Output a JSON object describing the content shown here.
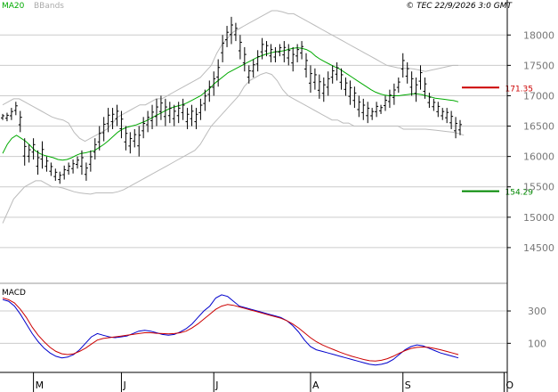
{
  "header": {
    "ma_label": "MA20",
    "bb_label": "BBands",
    "source_date": "© TEC 22/9/2026 3:0 GMT",
    "macd_label": "MACD"
  },
  "colors": {
    "price": "#000000",
    "ma20": "#00aa00",
    "bbands": "#bbbbbb",
    "resistance": "#cc0000",
    "support": "#008800",
    "macd": "#0000cc",
    "signal": "#cc0000",
    "grid": "#cccccc"
  },
  "chart_data": [
    {
      "type": "ohlc",
      "name": "price",
      "ylim": [
        14000,
        18400
      ],
      "y_ticks": [
        14500,
        15000,
        15500,
        16000,
        16500,
        17000,
        17500,
        18000
      ],
      "y_tick_labels": [
        "14500",
        "15000",
        "15500",
        "16000",
        "16500",
        "17000",
        "17500",
        "18000"
      ],
      "x_month_labels": [
        "M",
        "J",
        "J",
        "A",
        "S",
        "O"
      ],
      "bars": [
        [
          16700,
          16600
        ],
        [
          16720,
          16580
        ],
        [
          16800,
          16600
        ],
        [
          16900,
          16680
        ],
        [
          16750,
          16400
        ],
        [
          16300,
          15850
        ],
        [
          16200,
          15900
        ],
        [
          16300,
          15950
        ],
        [
          16100,
          15700
        ],
        [
          16250,
          15800
        ],
        [
          16000,
          15750
        ],
        [
          15900,
          15680
        ],
        [
          15800,
          15600
        ],
        [
          15750,
          15550
        ],
        [
          15850,
          15620
        ],
        [
          15900,
          15700
        ],
        [
          15950,
          15720
        ],
        [
          16000,
          15800
        ],
        [
          16100,
          15700
        ],
        [
          15900,
          15600
        ],
        [
          16100,
          15750
        ],
        [
          16300,
          15950
        ],
        [
          16500,
          16100
        ],
        [
          16650,
          16250
        ],
        [
          16800,
          16400
        ],
        [
          16800,
          16450
        ],
        [
          16850,
          16500
        ],
        [
          16750,
          16300
        ],
        [
          16500,
          16100
        ],
        [
          16400,
          16050
        ],
        [
          16450,
          16150
        ],
        [
          16500,
          16000
        ],
        [
          16650,
          16300
        ],
        [
          16750,
          16400
        ],
        [
          16850,
          16450
        ],
        [
          16950,
          16500
        ],
        [
          17000,
          16600
        ],
        [
          16950,
          16500
        ],
        [
          16900,
          16550
        ],
        [
          16850,
          16500
        ],
        [
          16900,
          16550
        ],
        [
          16950,
          16600
        ],
        [
          16800,
          16450
        ],
        [
          16850,
          16500
        ],
        [
          16800,
          16450
        ],
        [
          16950,
          16600
        ],
        [
          17100,
          16750
        ],
        [
          17250,
          16900
        ],
        [
          17400,
          17000
        ],
        [
          17600,
          17150
        ],
        [
          18000,
          17550
        ],
        [
          18150,
          17800
        ],
        [
          18300,
          17850
        ],
        [
          18200,
          17900
        ],
        [
          18000,
          17600
        ],
        [
          17800,
          17400
        ],
        [
          17500,
          17200
        ],
        [
          17600,
          17300
        ],
        [
          17750,
          17400
        ],
        [
          17950,
          17600
        ],
        [
          17900,
          17650
        ],
        [
          17850,
          17550
        ],
        [
          17800,
          17550
        ],
        [
          17850,
          17650
        ],
        [
          17900,
          17550
        ],
        [
          17850,
          17500
        ],
        [
          17800,
          17400
        ],
        [
          17850,
          17550
        ],
        [
          17900,
          17600
        ],
        [
          17700,
          17300
        ],
        [
          17500,
          17050
        ],
        [
          17450,
          17100
        ],
        [
          17350,
          16950
        ],
        [
          17300,
          16900
        ],
        [
          17400,
          17000
        ],
        [
          17500,
          17200
        ],
        [
          17550,
          17250
        ],
        [
          17450,
          17100
        ],
        [
          17300,
          17000
        ],
        [
          17250,
          16850
        ],
        [
          17150,
          16800
        ],
        [
          17000,
          16650
        ],
        [
          16950,
          16600
        ],
        [
          16900,
          16550
        ],
        [
          16800,
          16600
        ],
        [
          16900,
          16650
        ],
        [
          16850,
          16700
        ],
        [
          17000,
          16750
        ],
        [
          17100,
          16800
        ],
        [
          17200,
          16850
        ],
        [
          17300,
          17050
        ],
        [
          17700,
          17300
        ],
        [
          17550,
          17200
        ],
        [
          17400,
          17000
        ],
        [
          17300,
          16900
        ],
        [
          17500,
          17100
        ],
        [
          17300,
          16950
        ],
        [
          17050,
          16800
        ],
        [
          16950,
          16750
        ],
        [
          16900,
          16650
        ],
        [
          16800,
          16600
        ],
        [
          16800,
          16550
        ],
        [
          16750,
          16450
        ],
        [
          16650,
          16300
        ],
        [
          16600,
          16350
        ]
      ],
      "ma20": [
        16050,
        16200,
        16300,
        16350,
        16300,
        16250,
        16180,
        16100,
        16050,
        16020,
        16000,
        15980,
        15950,
        15940,
        15950,
        15980,
        16020,
        16050,
        16060,
        16080,
        16100,
        16150,
        16200,
        16260,
        16330,
        16400,
        16450,
        16480,
        16500,
        16520,
        16550,
        16580,
        16620,
        16660,
        16700,
        16740,
        16780,
        16810,
        16830,
        16850,
        16880,
        16920,
        16960,
        17000,
        17060,
        17120,
        17200,
        17260,
        17320,
        17380,
        17420,
        17460,
        17500,
        17540,
        17580,
        17620,
        17650,
        17680,
        17700,
        17720,
        17730,
        17740,
        17760,
        17780,
        17790,
        17780,
        17760,
        17720,
        17650,
        17600,
        17560,
        17520,
        17480,
        17450,
        17400,
        17350,
        17300,
        17250,
        17200,
        17150,
        17100,
        17060,
        17030,
        17010,
        17000,
        17000,
        17000,
        17010,
        17020,
        17030,
        17030,
        17020,
        17000,
        16980,
        16960,
        16950,
        16940,
        16930,
        16920,
        16900
      ],
      "bb_upper": [
        16850,
        16900,
        16950,
        16950,
        16900,
        16850,
        16800,
        16750,
        16700,
        16650,
        16620,
        16600,
        16550,
        16400,
        16300,
        16250,
        16300,
        16350,
        16400,
        16450,
        16550,
        16650,
        16700,
        16750,
        16800,
        16850,
        16850,
        16900,
        16950,
        16950,
        17000,
        17050,
        17100,
        17150,
        17200,
        17250,
        17300,
        17400,
        17500,
        17700,
        17850,
        17950,
        18050,
        18100,
        18150,
        18200,
        18250,
        18300,
        18350,
        18400,
        18400,
        18380,
        18350,
        18350,
        18300,
        18250,
        18200,
        18150,
        18100,
        18050,
        18000,
        17950,
        17900,
        17850,
        17800,
        17750,
        17700,
        17650,
        17600,
        17550,
        17500,
        17480,
        17460,
        17450,
        17450,
        17440,
        17420,
        17400,
        17420,
        17440,
        17460,
        17480,
        17500,
        17500
      ],
      "bb_lower": [
        14900,
        15100,
        15300,
        15400,
        15500,
        15550,
        15600,
        15600,
        15550,
        15500,
        15500,
        15480,
        15450,
        15420,
        15400,
        15390,
        15380,
        15400,
        15400,
        15400,
        15400,
        15420,
        15450,
        15500,
        15550,
        15600,
        15650,
        15700,
        15750,
        15800,
        15850,
        15900,
        15950,
        16000,
        16050,
        16100,
        16200,
        16350,
        16500,
        16600,
        16700,
        16800,
        16900,
        17000,
        17150,
        17250,
        17300,
        17350,
        17380,
        17350,
        17250,
        17100,
        17000,
        16950,
        16900,
        16850,
        16800,
        16750,
        16700,
        16650,
        16600,
        16600,
        16550,
        16550,
        16500,
        16500,
        16500,
        16500,
        16500,
        16500,
        16500,
        16500,
        16500,
        16450,
        16450,
        16450,
        16450,
        16450,
        16440,
        16430,
        16420,
        16410,
        16400,
        16380,
        16350
      ],
      "annotations": [
        {
          "label": "171.35",
          "value": 17135,
          "kind": "resistance"
        },
        {
          "label": "154.29",
          "value": 15429,
          "kind": "support"
        }
      ]
    },
    {
      "type": "line",
      "name": "MACD",
      "ylim": [
        -80,
        460
      ],
      "y_ticks": [
        100,
        300
      ],
      "y_tick_labels": [
        "100",
        "300"
      ],
      "series": [
        {
          "name": "MACD",
          "values": [
            370,
            360,
            330,
            280,
            220,
            160,
            110,
            70,
            40,
            20,
            10,
            15,
            30,
            60,
            100,
            140,
            160,
            150,
            140,
            135,
            140,
            145,
            160,
            175,
            180,
            175,
            165,
            155,
            150,
            155,
            170,
            190,
            220,
            260,
            300,
            330,
            380,
            400,
            390,
            360,
            330,
            320,
            310,
            300,
            290,
            280,
            270,
            260,
            240,
            210,
            170,
            120,
            80,
            60,
            50,
            40,
            30,
            20,
            10,
            0,
            -10,
            -20,
            -30,
            -35,
            -30,
            -20,
            0,
            30,
            60,
            80,
            90,
            85,
            70,
            55,
            40,
            30,
            20,
            10
          ]
        },
        {
          "name": "Signal",
          "values": [
            380,
            370,
            350,
            310,
            260,
            200,
            150,
            110,
            75,
            50,
            35,
            30,
            35,
            50,
            70,
            95,
            120,
            130,
            135,
            140,
            145,
            150,
            155,
            160,
            165,
            165,
            162,
            160,
            158,
            160,
            165,
            175,
            195,
            220,
            250,
            280,
            310,
            330,
            340,
            335,
            325,
            315,
            305,
            295,
            285,
            275,
            265,
            255,
            240,
            220,
            195,
            165,
            135,
            110,
            90,
            75,
            60,
            45,
            32,
            20,
            10,
            0,
            -8,
            -10,
            -5,
            5,
            20,
            38,
            55,
            68,
            75,
            77,
            75,
            68,
            60,
            50,
            40,
            30
          ]
        }
      ]
    }
  ]
}
